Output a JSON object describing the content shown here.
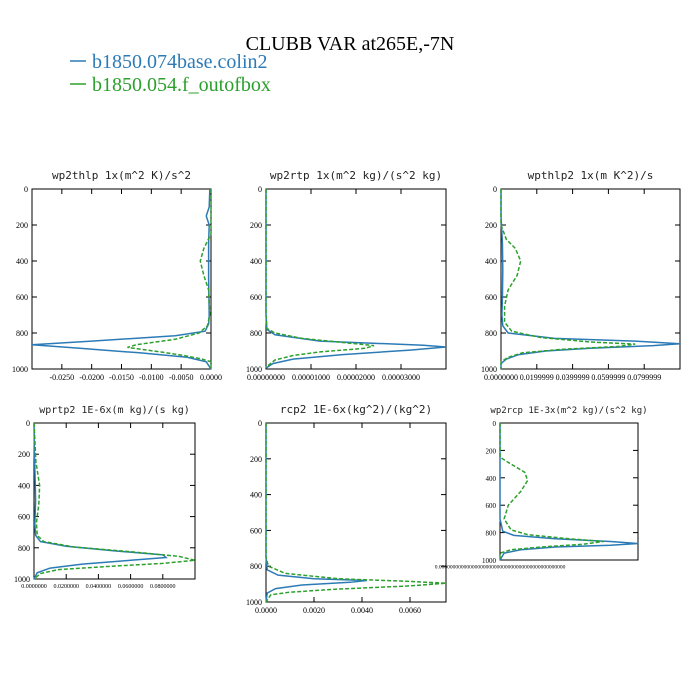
{
  "figure": {
    "title": "CLUBB VAR at265E,-7N",
    "legend": [
      {
        "name": "b1850.074base.colin2",
        "color": "#2c7bb6",
        "dash": "solid"
      },
      {
        "name": "b1850.054.f_outofbox",
        "color": "#2ca02c",
        "dash": "dashed"
      }
    ]
  },
  "chart_data": [
    {
      "type": "line",
      "title": "wp2thlp  1x(m^2 K)/s^2",
      "ylim": [
        0,
        1000
      ],
      "y_inverted": true,
      "xlim": [
        -0.03,
        0.0
      ],
      "yticks": [
        "0",
        "200",
        "400",
        "600",
        "800",
        "1000"
      ],
      "xticks": [
        {
          "v": -0.025,
          "label": "-0.0250"
        },
        {
          "v": -0.02,
          "label": "-0.0200"
        },
        {
          "v": -0.015,
          "label": "-0.0150"
        },
        {
          "v": -0.01,
          "label": "-0.0100"
        },
        {
          "v": -0.005,
          "label": "-0.0050"
        },
        {
          "v": 0.0,
          "label": "0.0000"
        }
      ],
      "series": [
        {
          "name": "b1850.074base.colin2",
          "points": [
            [
              -0.0002,
              0
            ],
            [
              -0.0003,
              100
            ],
            [
              -0.0008,
              150
            ],
            [
              -0.0003,
              200
            ],
            [
              -0.0004,
              300
            ],
            [
              -0.0004,
              500
            ],
            [
              -0.0003,
              700
            ],
            [
              -0.0004,
              750
            ],
            [
              -0.001,
              790
            ],
            [
              -0.006,
              815
            ],
            [
              -0.02,
              845
            ],
            [
              -0.03,
              865
            ],
            [
              -0.022,
              885
            ],
            [
              -0.012,
              910
            ],
            [
              -0.004,
              935
            ],
            [
              -0.0008,
              960
            ],
            [
              0,
              1000
            ]
          ]
        },
        {
          "name": "b1850.054.f_outofbox",
          "points": [
            [
              0,
              0
            ],
            [
              0,
              250
            ],
            [
              -0.0012,
              330
            ],
            [
              -0.0018,
              400
            ],
            [
              -0.0012,
              480
            ],
            [
              -0.0004,
              560
            ],
            [
              -0.0002,
              700
            ],
            [
              -0.0006,
              760
            ],
            [
              -0.002,
              800
            ],
            [
              -0.006,
              835
            ],
            [
              -0.0125,
              865
            ],
            [
              -0.014,
              880
            ],
            [
              -0.0085,
              905
            ],
            [
              -0.0045,
              925
            ],
            [
              -0.0015,
              945
            ],
            [
              0,
              960
            ],
            [
              0,
              1000
            ]
          ]
        }
      ]
    },
    {
      "type": "line",
      "title": "wp2rtp  1x(m^2 kg)/(s^2 kg)",
      "ylim": [
        0,
        1000
      ],
      "y_inverted": true,
      "xlim": [
        0,
        4e-05
      ],
      "yticks": [
        "0",
        "200",
        "400",
        "600",
        "800",
        "1000"
      ],
      "xticks": [
        {
          "v": 0,
          "label": "0.00000000"
        },
        {
          "v": 1e-05,
          "label": "0.00001000"
        },
        {
          "v": 2e-05,
          "label": "0.00002000"
        },
        {
          "v": 3e-05,
          "label": "0.00003000"
        }
      ],
      "series": [
        {
          "name": "b1850.074base.colin2",
          "points": [
            [
              0,
              0
            ],
            [
              0,
              700
            ],
            [
              2e-07,
              780
            ],
            [
              2e-06,
              810
            ],
            [
              1.2e-05,
              845
            ],
            [
              3.5e-05,
              868
            ],
            [
              4e-05,
              878
            ],
            [
              3.2e-05,
              895
            ],
            [
              1.7e-05,
              920
            ],
            [
              6e-06,
              945
            ],
            [
              1.5e-06,
              970
            ],
            [
              0,
              995
            ]
          ]
        },
        {
          "name": "b1850.054.f_outofbox",
          "points": [
            [
              0,
              0
            ],
            [
              0,
              700
            ],
            [
              2e-07,
              775
            ],
            [
              2e-06,
              800
            ],
            [
              8e-06,
              830
            ],
            [
              1.8e-05,
              855
            ],
            [
              2.4e-05,
              870
            ],
            [
              2.2e-05,
              885
            ],
            [
              1.2e-05,
              905
            ],
            [
              6e-06,
              925
            ],
            [
              2e-06,
              950
            ],
            [
              0,
              990
            ]
          ]
        }
      ]
    },
    {
      "type": "line",
      "title": "wpthlp2  1x(m K^2)/s",
      "ylim": [
        0,
        1000
      ],
      "y_inverted": true,
      "xlim": [
        0,
        0.1
      ],
      "yticks": [
        "0",
        "200",
        "400",
        "600",
        "800",
        "1000"
      ],
      "xticks": [
        {
          "v": 0,
          "label": "0.0000000"
        },
        {
          "v": 0.02,
          "label": "0.0199999"
        },
        {
          "v": 0.04,
          "label": "0.0399999"
        },
        {
          "v": 0.06,
          "label": "0.0599999"
        },
        {
          "v": 0.08,
          "label": "0.0799999"
        }
      ],
      "series": [
        {
          "name": "b1850.074base.colin2",
          "points": [
            [
              0,
              0
            ],
            [
              0,
              150
            ],
            [
              0.0008,
              300
            ],
            [
              0.001,
              450
            ],
            [
              0.0008,
              600
            ],
            [
              0.0005,
              700
            ],
            [
              0.001,
              760
            ],
            [
              0.004,
              800
            ],
            [
              0.03,
              830
            ],
            [
              0.075,
              845
            ],
            [
              0.1,
              860
            ],
            [
              0.085,
              870
            ],
            [
              0.05,
              885
            ],
            [
              0.025,
              900
            ],
            [
              0.01,
              920
            ],
            [
              0.003,
              945
            ],
            [
              0,
              970
            ],
            [
              0,
              1000
            ]
          ]
        },
        {
          "name": "b1850.054.f_outofbox",
          "points": [
            [
              0,
              0
            ],
            [
              0,
              200
            ],
            [
              0.003,
              280
            ],
            [
              0.008,
              330
            ],
            [
              0.011,
              400
            ],
            [
              0.009,
              480
            ],
            [
              0.004,
              560
            ],
            [
              0.002,
              650
            ],
            [
              0.002,
              740
            ],
            [
              0.006,
              790
            ],
            [
              0.022,
              825
            ],
            [
              0.05,
              850
            ],
            [
              0.075,
              862
            ],
            [
              0.065,
              875
            ],
            [
              0.035,
              890
            ],
            [
              0.012,
              910
            ],
            [
              0.004,
              935
            ],
            [
              0,
              960
            ],
            [
              0,
              1000
            ]
          ]
        }
      ]
    },
    {
      "type": "line",
      "title": "wprtp2  1E-6x(m kg)/(s kg)",
      "ylim": [
        0,
        1000
      ],
      "y_inverted": true,
      "xlim": [
        0,
        0.1
      ],
      "yticks": [
        "0",
        "200",
        "400",
        "600",
        "800",
        "1000"
      ],
      "xticks": [
        {
          "v": 0,
          "label": "0.0000000"
        },
        {
          "v": 0.02,
          "label": "0.0200000"
        },
        {
          "v": 0.04,
          "label": "0.0400000"
        },
        {
          "v": 0.06,
          "label": "0.0600000"
        },
        {
          "v": 0.08,
          "label": "0.0800000"
        }
      ],
      "series": [
        {
          "name": "b1850.074base.colin2",
          "points": [
            [
              0,
              0
            ],
            [
              0.0003,
              200
            ],
            [
              0.0008,
              400
            ],
            [
              0.001,
              500
            ],
            [
              0.0005,
              650
            ],
            [
              0.001,
              720
            ],
            [
              0.004,
              760
            ],
            [
              0.02,
              790
            ],
            [
              0.05,
              820
            ],
            [
              0.08,
              845
            ],
            [
              0.082,
              862
            ],
            [
              0.06,
              880
            ],
            [
              0.03,
              905
            ],
            [
              0.01,
              930
            ],
            [
              0.002,
              960
            ],
            [
              0,
              1000
            ]
          ]
        },
        {
          "name": "b1850.054.f_outofbox",
          "points": [
            [
              0,
              0
            ],
            [
              0.0012,
              250
            ],
            [
              0.0035,
              400
            ],
            [
              0.003,
              520
            ],
            [
              0.0015,
              640
            ],
            [
              0.002,
              720
            ],
            [
              0.006,
              760
            ],
            [
              0.025,
              795
            ],
            [
              0.06,
              825
            ],
            [
              0.09,
              855
            ],
            [
              0.1,
              880
            ],
            [
              0.08,
              900
            ],
            [
              0.045,
              920
            ],
            [
              0.015,
              940
            ],
            [
              0.004,
              965
            ],
            [
              0,
              1000
            ]
          ]
        }
      ]
    },
    {
      "type": "line",
      "title": "rcp2   1E-6x(kg^2)/(kg^2)",
      "ylim": [
        0,
        1000
      ],
      "y_inverted": true,
      "xlim": [
        0,
        0.0075
      ],
      "yticks": [
        "0",
        "200",
        "400",
        "600",
        "800",
        "1000"
      ],
      "xticks": [
        {
          "v": 0,
          "label": "0.0000"
        },
        {
          "v": 0.002,
          "label": "0.0020"
        },
        {
          "v": 0.004,
          "label": "0.0040"
        },
        {
          "v": 0.006,
          "label": "0.0060"
        }
      ],
      "series": [
        {
          "name": "b1850.074base.colin2",
          "points": [
            [
              0,
              0
            ],
            [
              0,
              750
            ],
            [
              5e-05,
              820
            ],
            [
              0.0005,
              850
            ],
            [
              0.002,
              870
            ],
            [
              0.0042,
              880
            ],
            [
              0.0035,
              890
            ],
            [
              0.0015,
              905
            ],
            [
              0.0004,
              925
            ],
            [
              5e-05,
              950
            ],
            [
              0,
              1000
            ]
          ]
        },
        {
          "name": "b1850.054.f_outofbox",
          "points": [
            [
              0,
              0
            ],
            [
              0,
              750
            ],
            [
              0.0001,
              800
            ],
            [
              0.0008,
              840
            ],
            [
              0.003,
              870
            ],
            [
              0.006,
              885
            ],
            [
              0.0075,
              895
            ],
            [
              0.006,
              910
            ],
            [
              0.003,
              928
            ],
            [
              0.001,
              945
            ],
            [
              0.0002,
              960
            ],
            [
              0,
              1000
            ]
          ]
        }
      ]
    },
    {
      "type": "line",
      "title": "wp2rcp  1E-3x(m^2 kg)/(s^2 kg)",
      "ylim": [
        0,
        1000
      ],
      "y_inverted": true,
      "xlim": [
        0,
        0.1
      ],
      "yticks": [
        "0",
        "200",
        "400",
        "600",
        "800",
        "1000"
      ],
      "xticks": [
        {
          "v": 0,
          "label": "0.0000000000000000000000000000000000000000000000"
        }
      ],
      "series": [
        {
          "name": "b1850.074base.colin2",
          "points": [
            [
              0,
              0
            ],
            [
              0,
              700
            ],
            [
              0.002,
              790
            ],
            [
              0.01,
              820
            ],
            [
              0.04,
              845
            ],
            [
              0.08,
              865
            ],
            [
              0.1,
              880
            ],
            [
              0.08,
              892
            ],
            [
              0.04,
              905
            ],
            [
              0.015,
              925
            ],
            [
              0.003,
              950
            ],
            [
              0,
              1000
            ]
          ]
        },
        {
          "name": "b1850.054.f_outofbox",
          "points": [
            [
              0,
              0
            ],
            [
              0,
              250
            ],
            [
              0.008,
              300
            ],
            [
              0.018,
              360
            ],
            [
              0.02,
              420
            ],
            [
              0.015,
              500
            ],
            [
              0.006,
              600
            ],
            [
              0.003,
              700
            ],
            [
              0.008,
              780
            ],
            [
              0.02,
              815
            ],
            [
              0.05,
              845
            ],
            [
              0.075,
              865
            ],
            [
              0.06,
              885
            ],
            [
              0.03,
              905
            ],
            [
              0.008,
              925
            ],
            [
              0,
              950
            ],
            [
              0,
              1000
            ]
          ]
        }
      ]
    }
  ]
}
